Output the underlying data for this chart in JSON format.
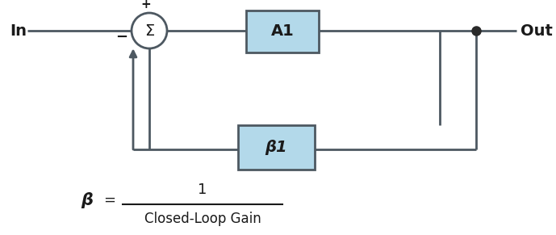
{
  "bg_color": "#ffffff",
  "line_color": "#4d5861",
  "box_fill": "#b3d9ea",
  "box_edge": "#4d5861",
  "dot_color": "#2a2a2a",
  "text_color": "#1a1a1a",
  "label_in": "In",
  "label_out": "Out",
  "label_a1": "A1",
  "label_b1": "β1",
  "label_plus": "+",
  "label_minus": "−",
  "label_sigma": "Σ",
  "formula_beta": "β",
  "formula_num": "1",
  "formula_den": "Closed-Loop Gain",
  "line_width": 2.0,
  "figsize": [
    6.89,
    2.91
  ],
  "dpi": 100,
  "xlim": [
    0,
    689
  ],
  "ylim": [
    0,
    291
  ]
}
